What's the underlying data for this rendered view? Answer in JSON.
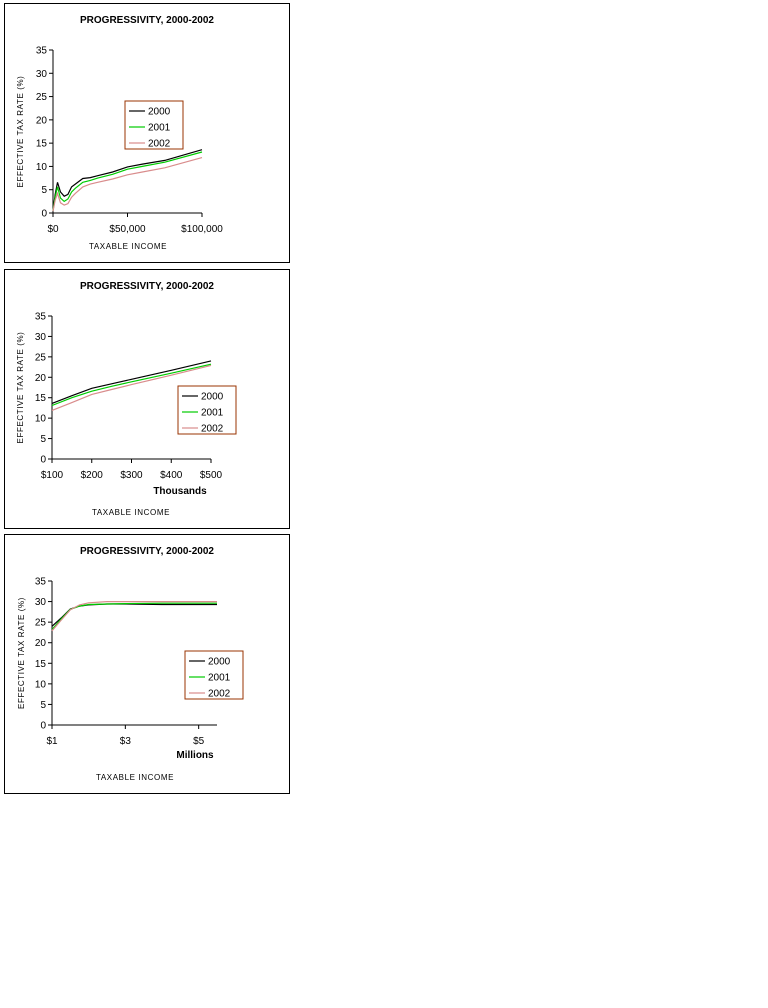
{
  "colors": {
    "2000": "#000000",
    "2001": "#00cc00",
    "2002": "#d98c8c",
    "legend_border": "#993300"
  },
  "chart_data": [
    {
      "type": "line",
      "title": "PROGRESSIVITY, 2000-2002",
      "xlabel": "TAXABLE INCOME",
      "ylabel": "EFFECTIVE TAX RATE  (%)",
      "unit_label": "",
      "xlim": [
        0,
        100000
      ],
      "ylim": [
        0,
        35
      ],
      "xticks": [
        0,
        50000,
        100000
      ],
      "xtick_labels": [
        "$0",
        "$50,000",
        "$100,000"
      ],
      "yticks": [
        0,
        5,
        10,
        15,
        20,
        25,
        30,
        35
      ],
      "ytick_labels": [
        "0",
        "5",
        "10",
        "15",
        "20",
        "25",
        "30",
        "35"
      ],
      "legend_position": "center",
      "series": [
        {
          "name": "2000",
          "points": [
            [
              0,
              0.5
            ],
            [
              1500,
              4
            ],
            [
              3000,
              6.6
            ],
            [
              5000,
              4.5
            ],
            [
              7500,
              3.6
            ],
            [
              10000,
              4
            ],
            [
              12500,
              5.6
            ],
            [
              15000,
              6.2
            ],
            [
              20000,
              7.4
            ],
            [
              25000,
              7.6
            ],
            [
              30000,
              8
            ],
            [
              40000,
              8.8
            ],
            [
              50000,
              9.9
            ],
            [
              60000,
              10.5
            ],
            [
              75000,
              11.3
            ],
            [
              100000,
              13.6
            ]
          ]
        },
        {
          "name": "2001",
          "points": [
            [
              0,
              0.5
            ],
            [
              1500,
              3.5
            ],
            [
              3000,
              5.6
            ],
            [
              5000,
              3.2
            ],
            [
              7500,
              2.5
            ],
            [
              10000,
              3
            ],
            [
              12500,
              4.5
            ],
            [
              15000,
              5.3
            ],
            [
              20000,
              6.6
            ],
            [
              25000,
              7
            ],
            [
              30000,
              7.5
            ],
            [
              40000,
              8.3
            ],
            [
              50000,
              9.4
            ],
            [
              60000,
              10
            ],
            [
              75000,
              10.9
            ],
            [
              100000,
              13.1
            ]
          ]
        },
        {
          "name": "2002",
          "points": [
            [
              0,
              0.4
            ],
            [
              1500,
              2.8
            ],
            [
              3000,
              4.2
            ],
            [
              5000,
              2.2
            ],
            [
              7500,
              1.7
            ],
            [
              10000,
              2
            ],
            [
              12500,
              3.4
            ],
            [
              15000,
              4.2
            ],
            [
              20000,
              5.6
            ],
            [
              25000,
              6.2
            ],
            [
              30000,
              6.6
            ],
            [
              40000,
              7.3
            ],
            [
              50000,
              8.2
            ],
            [
              60000,
              8.8
            ],
            [
              75000,
              9.7
            ],
            [
              100000,
              11.9
            ]
          ]
        }
      ]
    },
    {
      "type": "line",
      "title": "PROGRESSIVITY, 2000-2002",
      "xlabel": "TAXABLE INCOME",
      "ylabel": "EFFECTIVE TAX RATE  (%)",
      "unit_label": "Thousands",
      "xlim": [
        100,
        500
      ],
      "ylim": [
        0,
        35
      ],
      "xticks": [
        100,
        200,
        300,
        400,
        500
      ],
      "xtick_labels": [
        "$100",
        "$200",
        "$300",
        "$400",
        "$500"
      ],
      "yticks": [
        0,
        5,
        10,
        15,
        20,
        25,
        30,
        35
      ],
      "ytick_labels": [
        "0",
        "5",
        "10",
        "15",
        "20",
        "25",
        "30",
        "35"
      ],
      "legend_position": "right",
      "series": [
        {
          "name": "2000",
          "points": [
            [
              100,
              13.6
            ],
            [
              150,
              15.5
            ],
            [
              200,
              17.3
            ],
            [
              250,
              18.4
            ],
            [
              300,
              19.5
            ],
            [
              400,
              21.7
            ],
            [
              500,
              24
            ]
          ]
        },
        {
          "name": "2001",
          "points": [
            [
              100,
              13.1
            ],
            [
              150,
              15
            ],
            [
              200,
              16.6
            ],
            [
              250,
              17.8
            ],
            [
              300,
              18.9
            ],
            [
              400,
              21
            ],
            [
              500,
              23.2
            ]
          ]
        },
        {
          "name": "2002",
          "points": [
            [
              100,
              11.9
            ],
            [
              150,
              13.8
            ],
            [
              200,
              15.8
            ],
            [
              250,
              17
            ],
            [
              300,
              18.2
            ],
            [
              400,
              20.5
            ],
            [
              500,
              22.9
            ]
          ]
        }
      ]
    },
    {
      "type": "line",
      "title": "PROGRESSIVITY, 2000-2002",
      "xlabel": "TAXABLE INCOME",
      "ylabel": "EFFECTIVE TAX RATE  (%)",
      "unit_label": "Millions",
      "xlim": [
        1,
        5.5
      ],
      "ylim": [
        0,
        35
      ],
      "xticks": [
        1,
        3,
        5
      ],
      "xtick_labels": [
        "$1",
        "$3",
        "$5"
      ],
      "yticks": [
        0,
        5,
        10,
        15,
        20,
        25,
        30,
        35
      ],
      "ytick_labels": [
        "0",
        "5",
        "10",
        "15",
        "20",
        "25",
        "30",
        "35"
      ],
      "legend_position": "right",
      "series": [
        {
          "name": "2000",
          "points": [
            [
              1,
              24
            ],
            [
              1.25,
              26
            ],
            [
              1.5,
              28.2
            ],
            [
              1.75,
              28.9
            ],
            [
              2,
              29.2
            ],
            [
              2.5,
              29.4
            ],
            [
              3,
              29.4
            ],
            [
              4,
              29.3
            ],
            [
              5.5,
              29.3
            ]
          ]
        },
        {
          "name": "2001",
          "points": [
            [
              1,
              23.2
            ],
            [
              1.25,
              25.8
            ],
            [
              1.5,
              28.1
            ],
            [
              1.75,
              28.9
            ],
            [
              2,
              29.3
            ],
            [
              2.5,
              29.4
            ],
            [
              3,
              29.5
            ],
            [
              4,
              29.6
            ],
            [
              5.5,
              29.6
            ]
          ]
        },
        {
          "name": "2002",
          "points": [
            [
              1,
              22.9
            ],
            [
              1.25,
              25.5
            ],
            [
              1.5,
              28
            ],
            [
              1.75,
              29.2
            ],
            [
              2,
              29.7
            ],
            [
              2.5,
              30
            ],
            [
              3,
              30
            ],
            [
              4,
              30
            ],
            [
              5.5,
              30
            ]
          ]
        }
      ]
    }
  ]
}
